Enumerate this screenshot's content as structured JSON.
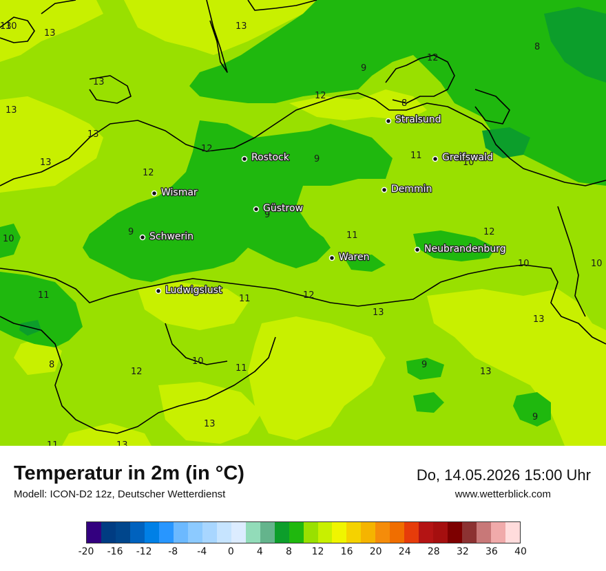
{
  "header": {
    "title": "Temperatur in 2m (in °C)",
    "model": "Modell: ICON-D2 12z, Deutscher Wetterdienst",
    "valid_time": "Do, 14.05.2026 15:00 Uhr",
    "website": "www.wetterblick.com"
  },
  "palette": {
    "band_8_10": "#1fb80e",
    "band_10_12": "#99e000",
    "band_12_14": "#c8f000",
    "band_6_8": "#0c9e2b",
    "coast_line": "#000000"
  },
  "cities": [
    {
      "name": "Stralsund"
    },
    {
      "name": "Rostock"
    },
    {
      "name": "Greifswald"
    },
    {
      "name": "Wismar"
    },
    {
      "name": "Demmin"
    },
    {
      "name": "Güstrow"
    },
    {
      "name": "Schwerin"
    },
    {
      "name": "Neubrandenburg"
    },
    {
      "name": "Waren"
    },
    {
      "name": "Ludwigslust"
    }
  ],
  "isolines": [
    "13",
    "13",
    "13",
    "13",
    "13",
    "13",
    "12",
    "13",
    "12",
    "12",
    "11",
    "10",
    "12",
    "10",
    "9",
    "9",
    "9",
    "9",
    "8",
    "8",
    "10",
    "11",
    "12",
    "11",
    "12",
    "10",
    "13",
    "13",
    "9",
    "10",
    "11",
    "8",
    "13",
    "9",
    "12",
    "13",
    "11",
    "13",
    "11",
    "10"
  ],
  "legend": {
    "colors": [
      "#33007f",
      "#003c82",
      "#00468c",
      "#0062be",
      "#0080e6",
      "#2896ff",
      "#6cb9ff",
      "#8ccaff",
      "#a8d6ff",
      "#c6e4ff",
      "#dcecff",
      "#92dcb9",
      "#64b48c",
      "#0c9e2b",
      "#1fb80e",
      "#99e000",
      "#c8f000",
      "#f0f500",
      "#f5d200",
      "#f5b400",
      "#f58c0a",
      "#f06e00",
      "#e63c0a",
      "#b41414",
      "#a50f0f",
      "#7d0000",
      "#8c3232",
      "#c87878",
      "#f0aaaa",
      "#ffdcdc"
    ],
    "ticks": [
      "-20",
      "-16",
      "-12",
      "-8",
      "-4",
      "0",
      "4",
      "8",
      "12",
      "16",
      "20",
      "24",
      "28",
      "32",
      "36",
      "40"
    ]
  }
}
